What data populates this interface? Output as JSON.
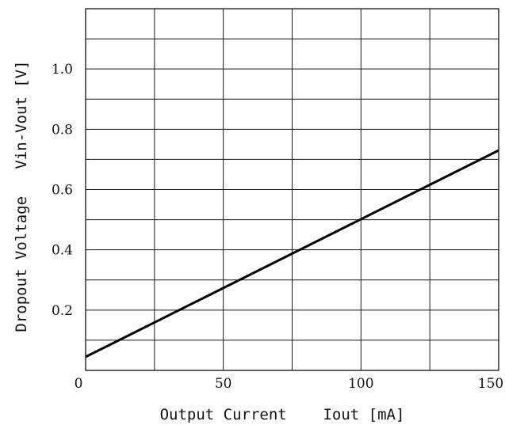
{
  "chart_data": {
    "type": "line",
    "title": "",
    "xlabel": "Output Current    Iout [mA]",
    "ylabel": "Dropout Voltage   Vin-Vout [V]",
    "xlim": [
      0,
      150
    ],
    "ylim": [
      0,
      1.2
    ],
    "x_ticks": [
      0,
      25,
      50,
      75,
      100,
      125,
      150
    ],
    "x_tick_labels": [
      "0",
      "50",
      "100",
      "150"
    ],
    "x_tick_label_values": [
      0,
      50,
      100,
      150
    ],
    "y_ticks": [
      0,
      0.1,
      0.2,
      0.3,
      0.4,
      0.5,
      0.6,
      0.7,
      0.8,
      0.9,
      1.0,
      1.1,
      1.2
    ],
    "y_tick_labels": [
      "0.2",
      "0.4",
      "0.6",
      "0.8",
      "1.0"
    ],
    "y_tick_label_values": [
      0.2,
      0.4,
      0.6,
      0.8,
      1.0
    ],
    "grid": true,
    "legend": "none",
    "series": [
      {
        "x": [
          0,
          150
        ],
        "y": [
          0.045,
          0.73
        ],
        "color": "#000000"
      }
    ]
  }
}
